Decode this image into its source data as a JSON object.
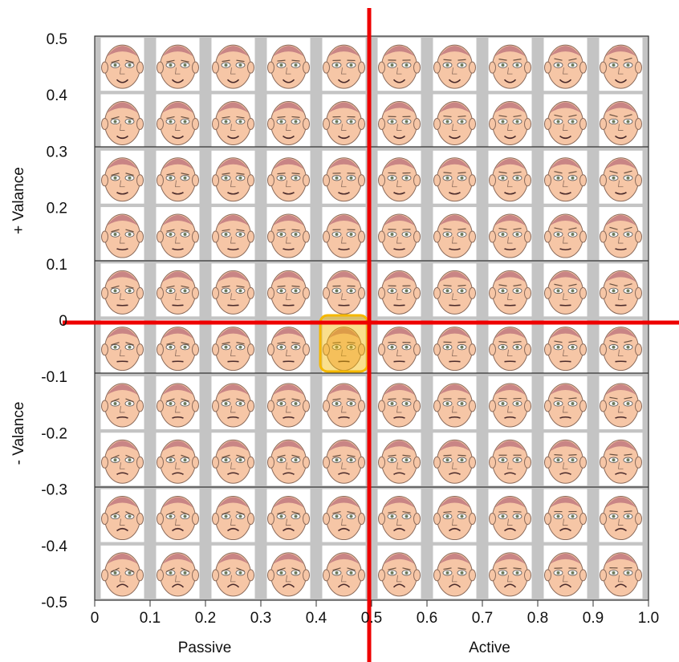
{
  "axes": {
    "x_title_left": "Passive",
    "x_title_right": "Active",
    "y_title_top": "+ Valance",
    "y_title_bottom": "- Valance",
    "x_ticks": [
      "0",
      "0.1",
      "0.2",
      "0.3",
      "0.4",
      "0.5",
      "0.6",
      "0.7",
      "0.8",
      "0.9",
      "1.0"
    ],
    "y_ticks": [
      "0.5",
      "0.4",
      "0.3",
      "0.2",
      "0.1",
      "0",
      "-0.1",
      "-0.2",
      "-0.3",
      "-0.4",
      "-0.5"
    ]
  }
}
